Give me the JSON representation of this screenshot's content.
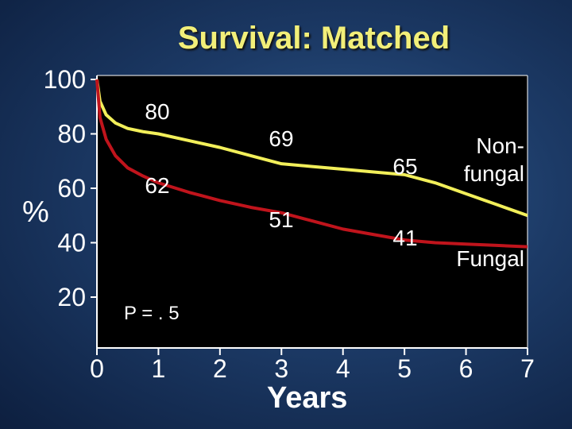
{
  "chart_data": {
    "type": "line",
    "title": "Survival: Matched",
    "xlabel": "Years",
    "ylabel": "%",
    "x_ticks": [
      "0",
      "1",
      "2",
      "3",
      "4",
      "5",
      "6",
      "7"
    ],
    "y_ticks": [
      "100",
      "80",
      "60",
      "40",
      "20"
    ],
    "xlim": [
      0,
      7
    ],
    "ylim": [
      0,
      100
    ],
    "grid": false,
    "series": [
      {
        "name": "Non-fungal",
        "color": "#f2ef5a",
        "x": [
          0,
          0.05,
          0.15,
          0.3,
          0.5,
          0.75,
          1,
          1.5,
          2,
          2.5,
          3,
          3.5,
          4,
          4.5,
          5,
          5.5,
          6,
          6.5,
          7
        ],
        "y": [
          100,
          92,
          87,
          84,
          82,
          80.8,
          80,
          77.5,
          75,
          72,
          69,
          68,
          67,
          66,
          65,
          62,
          58,
          54,
          50
        ]
      },
      {
        "name": "Fungal",
        "color": "#c0141c",
        "x": [
          0,
          0.05,
          0.15,
          0.3,
          0.5,
          0.75,
          1,
          1.5,
          2,
          2.5,
          3,
          3.5,
          4,
          4.5,
          5,
          5.5,
          6,
          6.5,
          7
        ],
        "y": [
          100,
          86,
          78,
          72,
          67.5,
          64.5,
          62,
          58.5,
          55.5,
          53,
          51,
          48,
          45,
          43,
          41,
          40,
          39.5,
          39,
          38.5
        ]
      }
    ],
    "annotations": [
      {
        "text": "80",
        "x": 1,
        "y": 80
      },
      {
        "text": "62",
        "x": 1,
        "y": 62
      },
      {
        "text": "69",
        "x": 3,
        "y": 69
      },
      {
        "text": "51",
        "x": 3,
        "y": 51
      },
      {
        "text": "65",
        "x": 5,
        "y": 65
      },
      {
        "text": "41",
        "x": 5,
        "y": 41
      }
    ],
    "series_labels": {
      "nonfungal_line1": "Non-",
      "nonfungal_line2": "fungal",
      "fungal": "Fungal"
    },
    "p_value": "P = . 5"
  }
}
